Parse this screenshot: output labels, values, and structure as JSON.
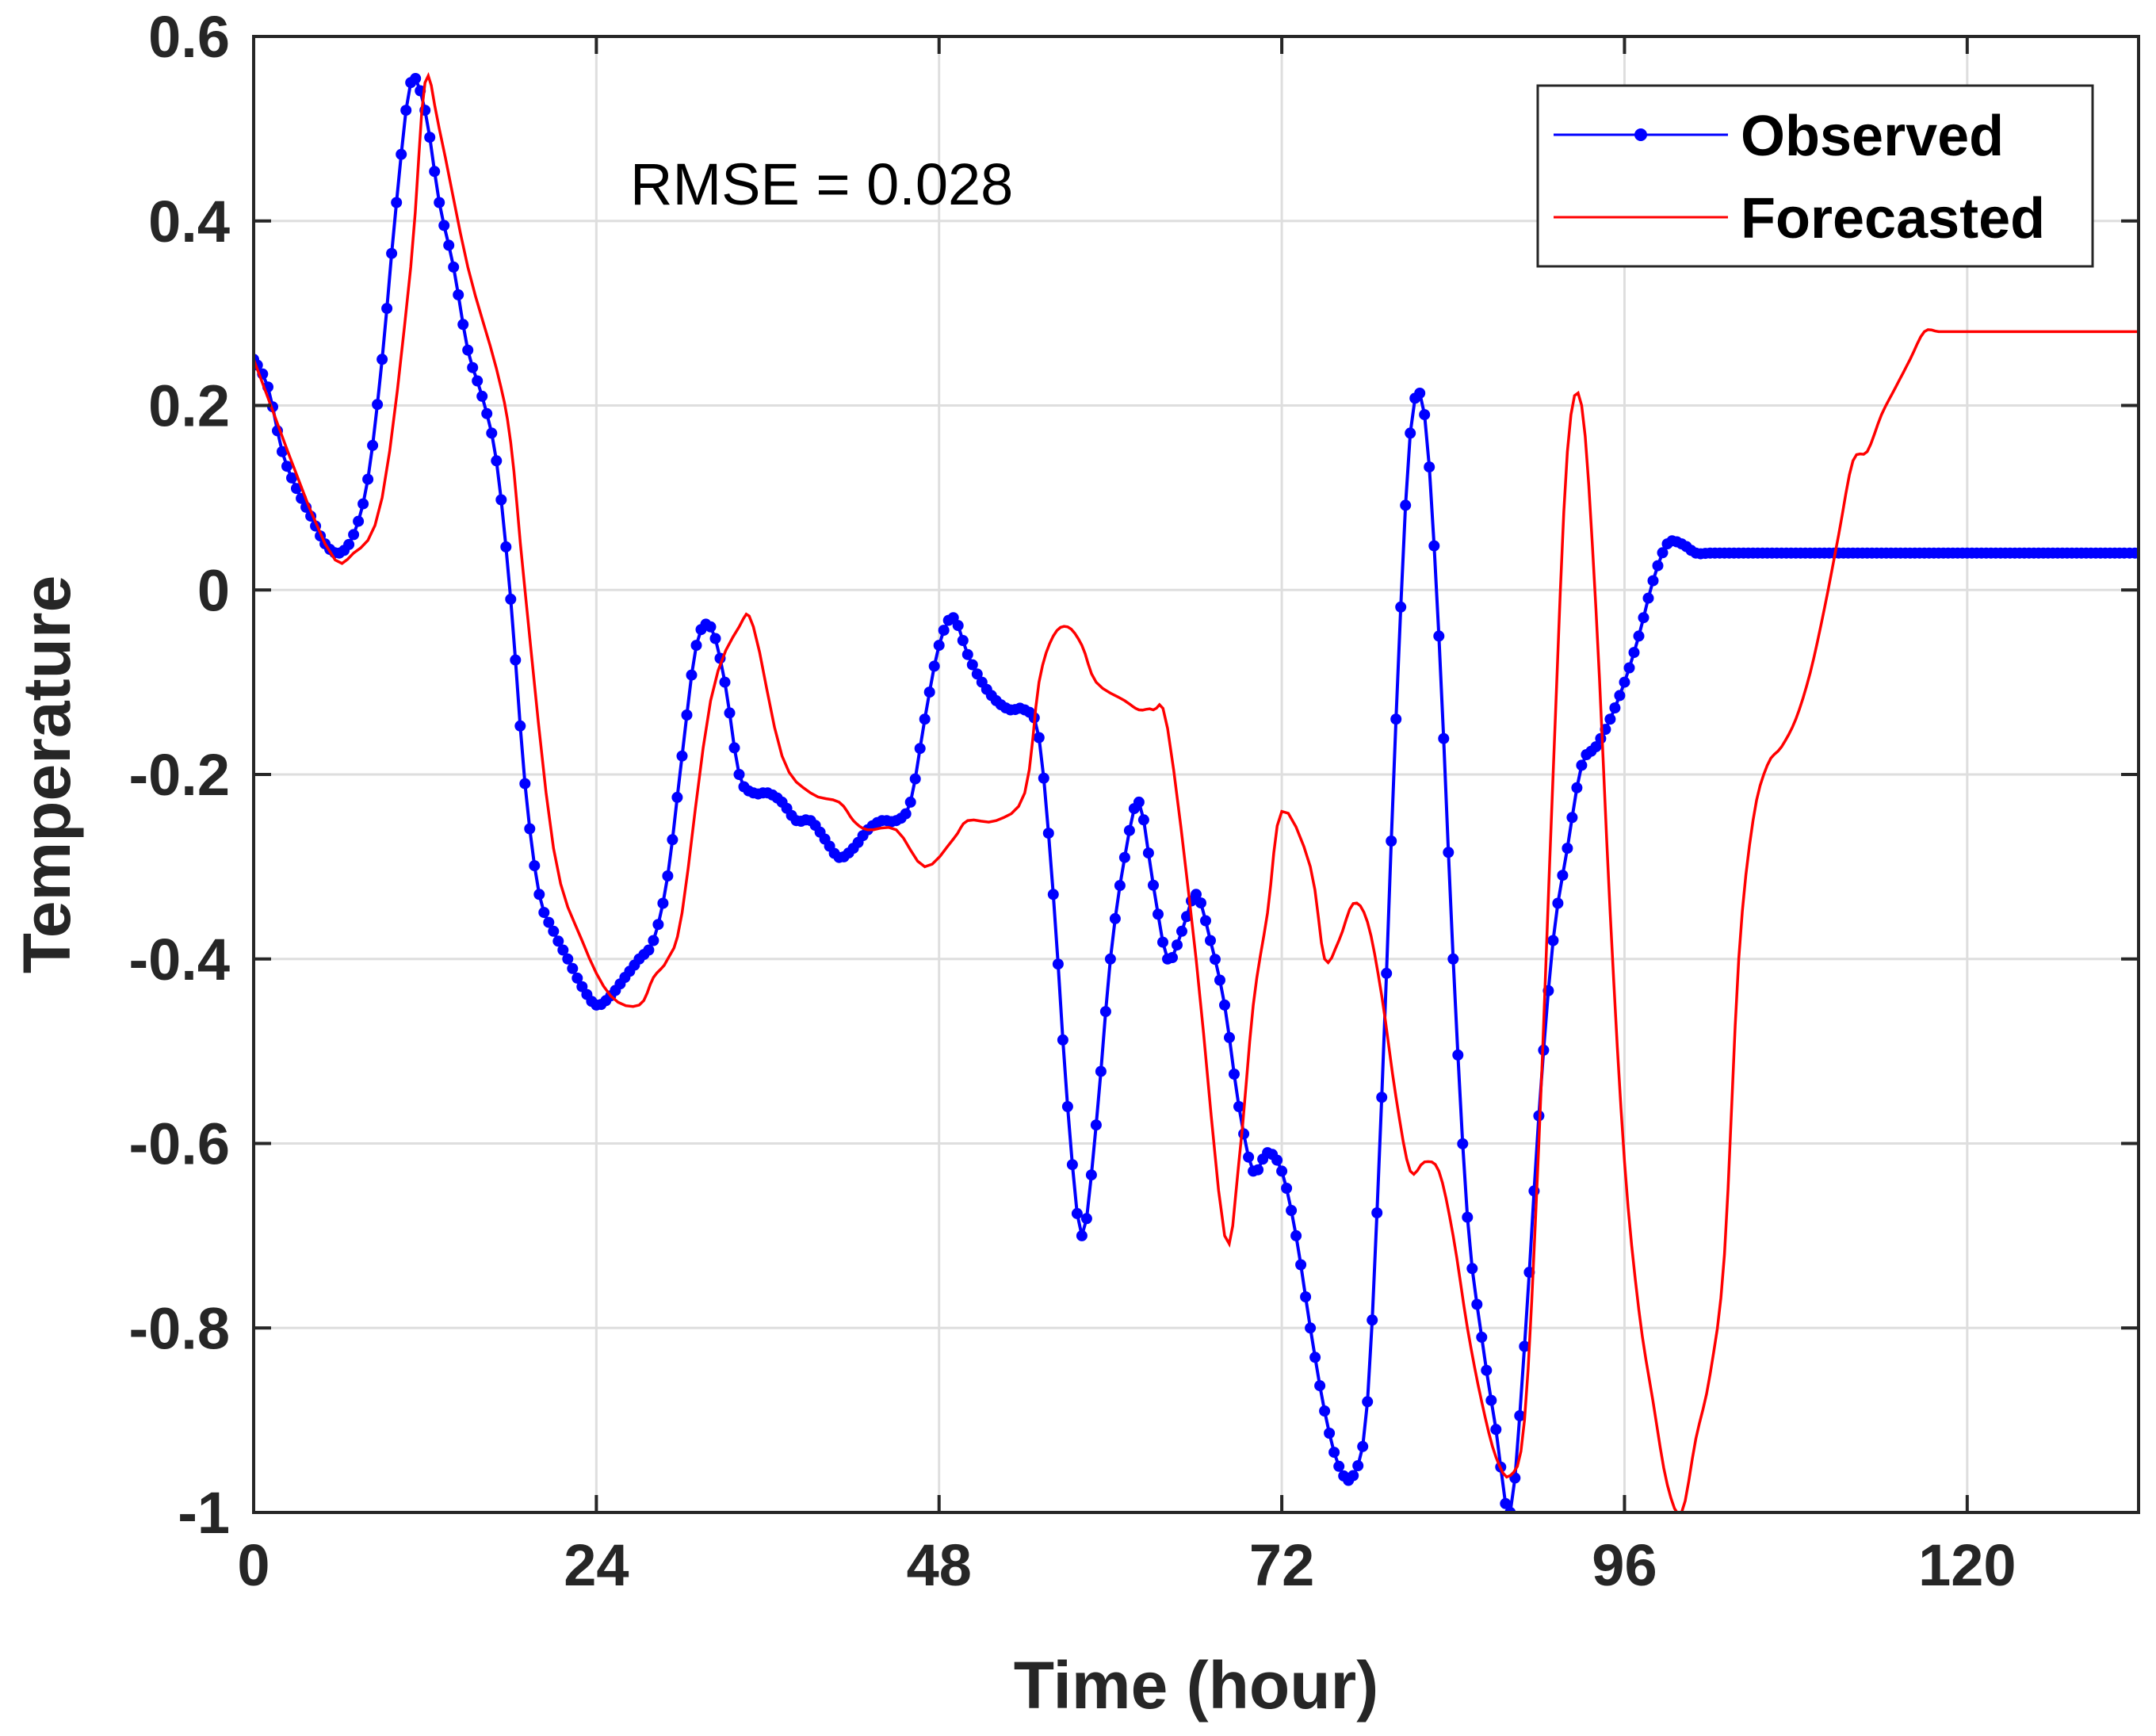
{
  "chart_data": {
    "type": "line",
    "title": "",
    "xlabel": "Time (hour)",
    "ylabel": "Temperature",
    "xlim": [
      0,
      132
    ],
    "ylim": [
      -1,
      0.6
    ],
    "xticks": [
      0,
      24,
      48,
      72,
      96,
      120
    ],
    "xtick_labels": [
      "0",
      "24",
      "48",
      "72",
      "96",
      "120"
    ],
    "yticks": [
      0.6,
      0.4,
      0.2,
      0,
      -0.2,
      -0.4,
      -0.6,
      -0.8,
      -1
    ],
    "ytick_labels": [
      "0.6",
      "0.4",
      "0.2",
      "0",
      "-0.2",
      "-0.4",
      "-0.6",
      "-0.8",
      "-1"
    ],
    "grid": true,
    "annotation": "RMSE = 0.028",
    "legend": {
      "placement": "top-right",
      "entries": [
        "Observed",
        "Forecasted"
      ]
    },
    "series": [
      {
        "name": "Observed",
        "color": "#0000ff",
        "marker": "dot",
        "x": [
          0,
          1,
          2,
          3,
          4,
          5,
          6,
          7,
          8,
          9,
          10,
          11,
          12,
          13,
          14,
          15,
          16,
          17,
          18,
          19,
          20,
          21,
          22,
          23,
          24,
          25,
          26,
          27,
          28,
          29,
          30,
          31,
          32,
          33,
          34,
          35,
          36,
          37,
          38,
          39,
          40,
          41,
          42,
          43,
          44,
          45,
          46,
          47,
          48,
          49,
          50,
          51,
          52,
          53,
          54,
          55,
          56,
          57,
          58,
          59,
          60,
          61,
          62,
          63,
          64,
          65,
          66,
          67,
          68,
          69,
          70,
          71,
          72,
          73,
          74,
          75,
          76,
          77,
          78,
          79,
          80,
          81,
          82,
          83,
          84,
          85,
          86,
          87,
          88,
          89,
          90,
          91,
          92,
          93,
          94,
          95,
          96,
          97,
          98,
          99,
          100,
          101,
          102,
          103,
          104,
          105,
          106,
          107,
          108,
          109,
          110,
          111,
          112,
          113,
          114,
          115,
          116,
          117,
          118,
          119,
          120,
          121,
          122,
          123,
          124,
          125,
          126,
          127,
          128,
          129,
          130,
          131,
          132
        ],
        "values": [
          0.25,
          0.22,
          0.15,
          0.11,
          0.08,
          0.05,
          0.04,
          0.06,
          0.12,
          0.25,
          0.42,
          0.55,
          0.52,
          0.42,
          0.35,
          0.26,
          0.21,
          0.14,
          -0.01,
          -0.21,
          -0.33,
          -0.37,
          -0.4,
          -0.43,
          -0.45,
          -0.44,
          -0.42,
          -0.4,
          -0.38,
          -0.31,
          -0.18,
          -0.06,
          -0.04,
          -0.1,
          -0.2,
          -0.22,
          -0.22,
          -0.23,
          -0.25,
          -0.25,
          -0.27,
          -0.29,
          -0.28,
          -0.26,
          -0.25,
          -0.25,
          -0.23,
          -0.14,
          -0.06,
          -0.03,
          -0.07,
          -0.1,
          -0.12,
          -0.13,
          -0.13,
          -0.16,
          -0.33,
          -0.56,
          -0.7,
          -0.58,
          -0.4,
          -0.29,
          -0.23,
          -0.32,
          -0.4,
          -0.37,
          -0.33,
          -0.38,
          -0.45,
          -0.56,
          -0.63,
          -0.61,
          -0.63,
          -0.7,
          -0.8,
          -0.89,
          -0.95,
          -0.96,
          -0.88,
          -0.55,
          -0.14,
          0.17,
          0.19,
          -0.05,
          -0.4,
          -0.68,
          -0.81,
          -0.91,
          -1.0,
          -0.82,
          -0.57,
          -0.38,
          -0.28,
          -0.19,
          -0.17,
          -0.14,
          -0.1,
          -0.05,
          0.01,
          0.05,
          0.05,
          0.04,
          0.04,
          0.04,
          0.04,
          0.04,
          0.04,
          0.04,
          0.04,
          0.04,
          0.04,
          0.04,
          0.04,
          0.04,
          0.04,
          0.04,
          0.04,
          0.04,
          0.04,
          0.04,
          0.04,
          0.04,
          0.04,
          0.04,
          0.04,
          0.04,
          0.04,
          0.04,
          0.04,
          0.04,
          0.04,
          0.04,
          0.04
        ]
      },
      {
        "name": "Forecasted",
        "color": "#ff0000",
        "marker": "none",
        "x": [
          0,
          5,
          7,
          9,
          11,
          12,
          13,
          15,
          17,
          18,
          19,
          21,
          23,
          25,
          27,
          28,
          29,
          30,
          32,
          34,
          35,
          37,
          39,
          41,
          42,
          43,
          45,
          47,
          49,
          50,
          52,
          54,
          55,
          56,
          57,
          58,
          59,
          61,
          62,
          63,
          64,
          66,
          68,
          69,
          70,
          71,
          72,
          74,
          75,
          76,
          77,
          78,
          79,
          80,
          81,
          82,
          83,
          84,
          85,
          86,
          87,
          88,
          89,
          90,
          91,
          92,
          93,
          94,
          95,
          96,
          97,
          98,
          99,
          100,
          101,
          102,
          103,
          104,
          105,
          106,
          107,
          108,
          109,
          110,
          111,
          112,
          113,
          114,
          115,
          116,
          117,
          118,
          119,
          120,
          121,
          122,
          123,
          124,
          125,
          126,
          127,
          128,
          129,
          130,
          131,
          132
        ],
        "values": [
          0.25,
          0.05,
          0.04,
          0.1,
          0.35,
          0.55,
          0.5,
          0.35,
          0.24,
          0.16,
          0.0,
          -0.28,
          -0.38,
          -0.44,
          -0.45,
          -0.42,
          -0.4,
          -0.35,
          -0.12,
          -0.04,
          -0.04,
          -0.18,
          -0.22,
          -0.23,
          -0.25,
          -0.26,
          -0.26,
          -0.3,
          -0.27,
          -0.25,
          -0.25,
          -0.22,
          -0.1,
          -0.05,
          -0.04,
          -0.06,
          -0.1,
          -0.12,
          -0.13,
          -0.13,
          -0.15,
          -0.4,
          -0.7,
          -0.62,
          -0.45,
          -0.35,
          -0.24,
          -0.3,
          -0.4,
          -0.38,
          -0.34,
          -0.36,
          -0.44,
          -0.55,
          -0.63,
          -0.62,
          -0.63,
          -0.7,
          -0.8,
          -0.88,
          -0.94,
          -0.96,
          -0.9,
          -0.6,
          -0.2,
          0.15,
          0.2,
          -0.02,
          -0.35,
          -0.62,
          -0.78,
          -0.88,
          -0.97,
          -1.0,
          -0.92,
          -0.85,
          -0.72,
          -0.4,
          -0.25,
          -0.19,
          -0.17,
          -0.14,
          -0.09,
          -0.02,
          0.06,
          0.14,
          0.15,
          0.19,
          0.22,
          0.25,
          0.28,
          0.28,
          0.28,
          0.28,
          0.28,
          0.28,
          0.28,
          0.28,
          0.28,
          0.28,
          0.28,
          0.28,
          0.28,
          0.28,
          0.28,
          0.28
        ]
      }
    ]
  }
}
